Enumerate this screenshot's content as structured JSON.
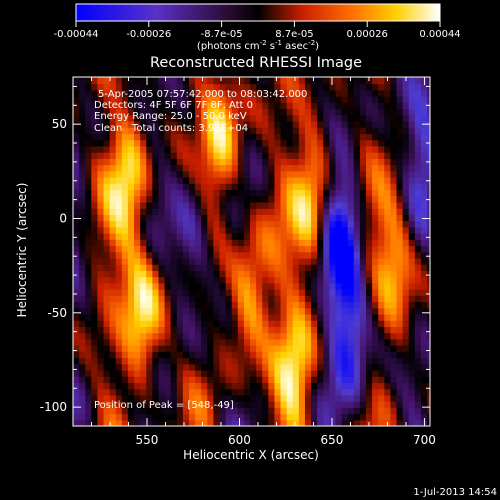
{
  "chart_data": {
    "type": "heatmap",
    "title": "Reconstructed RHESSI Image",
    "xlabel": "Heliocentric X (arcsec)",
    "ylabel": "Heliocentric Y (arcsec)",
    "xlim": [
      510,
      703
    ],
    "ylim": [
      -110,
      75
    ],
    "xticks": [
      550,
      600,
      650,
      700
    ],
    "yticks": [
      -100,
      -50,
      0,
      50
    ],
    "colorbar": {
      "colormap": "blue-purple-black-red-yellow-white (RHESSI)",
      "ticks": [
        "-0.00044",
        "-0.00026",
        "-8.7e-05",
        "8.7e-05",
        "0.00026",
        "0.00044"
      ],
      "range": [
        -0.00044,
        0.00044
      ],
      "unit_text": "(photons cm⁻² s⁻¹ asec⁻²)"
    },
    "annotations": [
      "5-Apr-2005 07:57:42.000 to 08:03:42.000",
      "Detectors: 4F 5F 6F 7F 8F, Att 0",
      "Energy Range: 25.0 - 50.0 keV",
      "Clean   Total counts: 3.93E+04",
      "Position of Peak = [548,-49]"
    ],
    "peak": {
      "x": 548,
      "y": -49
    },
    "bright_features": [
      {
        "x": 548,
        "y": -49,
        "level": 1.0
      },
      {
        "x": 540,
        "y": 20,
        "level": 0.8
      },
      {
        "x": 590,
        "y": 40,
        "level": 0.85
      },
      {
        "x": 605,
        "y": -40,
        "level": 0.8
      },
      {
        "x": 640,
        "y": 10,
        "level": 0.95
      },
      {
        "x": 630,
        "y": -80,
        "level": 0.85
      },
      {
        "x": 685,
        "y": -20,
        "level": 0.8
      }
    ],
    "dark_features": [
      {
        "x": 655,
        "y": -10,
        "level": -1.0
      },
      {
        "x": 660,
        "y": -60,
        "level": -0.85
      },
      {
        "x": 575,
        "y": -10,
        "level": -0.7
      },
      {
        "x": 700,
        "y": 40,
        "level": -0.6
      }
    ]
  },
  "footer": {
    "timestamp": "1-Jul-2013 14:54"
  }
}
